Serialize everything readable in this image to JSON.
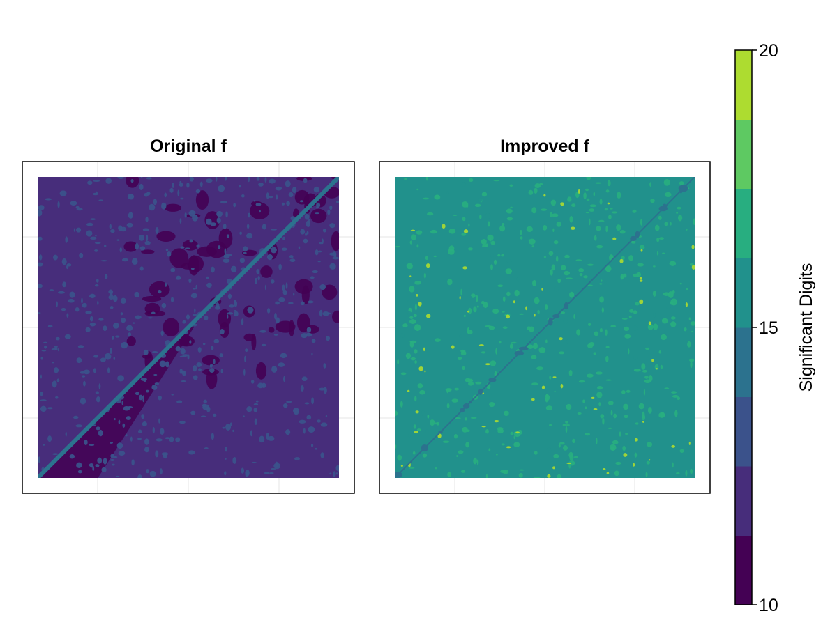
{
  "chart_data": {
    "type": "heatmap",
    "colorbar": {
      "label": "Significant Digits",
      "range": [
        10,
        20
      ],
      "ticks": [
        10,
        15,
        20
      ],
      "levels": [
        10,
        11.25,
        12.5,
        13.75,
        15,
        16.25,
        17.5,
        18.75,
        20
      ],
      "colors": [
        "#440154",
        "#472d7b",
        "#3b528b",
        "#2c728e",
        "#21918c",
        "#28ae80",
        "#5ec962",
        "#addc30",
        "#fde725"
      ]
    },
    "panels": [
      {
        "title": "Original f",
        "dominant_band": [
          11.25,
          12.5
        ],
        "diagonal_band": [
          13.75,
          15
        ],
        "lower_left_band": [
          10,
          11.25
        ],
        "description_bands": "mostly 11.25-12.5 with a darker 10-11.25 region below the diagonal, scattered 12.5-13.75 blobs"
      },
      {
        "title": "Improved f",
        "dominant_band": [
          15,
          16.25
        ],
        "diagonal_band": [
          13.75,
          15
        ],
        "speck_band": [
          16.25,
          17.5
        ]
      }
    ],
    "grid": true,
    "axis_tick_labels": "hidden",
    "legend": "colorbar-right"
  }
}
